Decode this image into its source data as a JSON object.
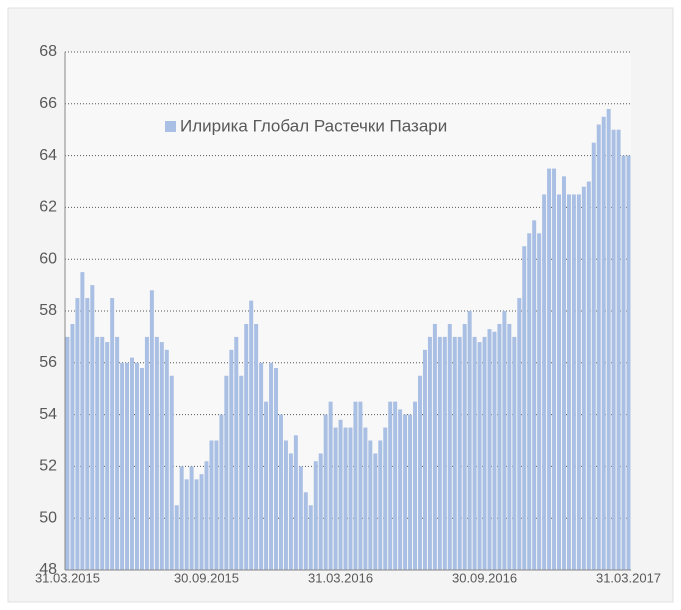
{
  "chart_data": {
    "type": "bar",
    "categories": [
      "31.03.2015",
      null,
      null,
      null,
      null,
      null,
      null,
      null,
      null,
      null,
      null,
      null,
      null,
      null,
      null,
      null,
      null,
      null,
      null,
      null,
      null,
      null,
      null,
      null,
      null,
      null,
      null,
      null,
      "30.09.2015",
      null,
      null,
      null,
      null,
      null,
      null,
      null,
      null,
      null,
      null,
      null,
      null,
      null,
      null,
      null,
      null,
      null,
      null,
      null,
      null,
      null,
      null,
      null,
      null,
      null,
      null,
      "31.03.2016",
      null,
      null,
      null,
      null,
      null,
      null,
      null,
      null,
      null,
      null,
      null,
      null,
      null,
      null,
      null,
      null,
      null,
      null,
      null,
      null,
      null,
      null,
      null,
      null,
      null,
      null,
      null,
      null,
      "30.09.2016",
      null,
      null,
      null,
      null,
      null,
      null,
      null,
      null,
      null,
      null,
      null,
      null,
      null,
      null,
      null,
      null,
      null,
      null,
      null,
      null,
      null,
      null,
      null,
      null,
      null,
      null,
      null,
      null,
      "31.03.2017"
    ],
    "series": [
      {
        "name": "Илирика Глобал Растечки Пазари",
        "color": "#a9bfe3",
        "values": [
          57,
          57.5,
          58.5,
          59.5,
          58.5,
          59,
          57,
          57,
          56.8,
          58.5,
          57,
          56,
          56,
          56.2,
          56,
          55.8,
          57,
          58.8,
          57,
          56.8,
          56.5,
          55.5,
          50.5,
          52,
          51.5,
          52,
          51.5,
          51.7,
          52.2,
          53,
          53,
          54,
          55.5,
          56.5,
          57,
          55.5,
          57.5,
          58.4,
          57.5,
          56,
          54.5,
          56,
          55.8,
          54,
          53,
          52.5,
          53.2,
          52,
          51,
          50.5,
          52.2,
          52.5,
          54,
          54.5,
          53.5,
          53.8,
          53.5,
          53.5,
          54.5,
          54.5,
          53.5,
          53,
          52.5,
          53,
          53.5,
          54.5,
          54.5,
          54.2,
          54,
          54,
          54.5,
          55.5,
          56.5,
          57,
          57.5,
          57,
          57,
          57.5,
          57,
          57,
          57.5,
          58,
          57,
          56.8,
          57,
          57.3,
          57.2,
          57.5,
          58,
          57.5,
          57,
          58.5,
          60.5,
          61,
          61.5,
          61,
          62.5,
          63.5,
          63.5,
          62.5,
          63.2,
          62.5,
          62.5,
          62.5,
          62.8,
          63,
          64.5,
          65.2,
          65.5,
          65.8,
          65,
          65,
          64,
          64
        ]
      }
    ],
    "ylim": [
      48,
      68
    ],
    "yticks": [
      48,
      50,
      52,
      54,
      56,
      58,
      60,
      62,
      64,
      66,
      68
    ],
    "grid": true
  }
}
